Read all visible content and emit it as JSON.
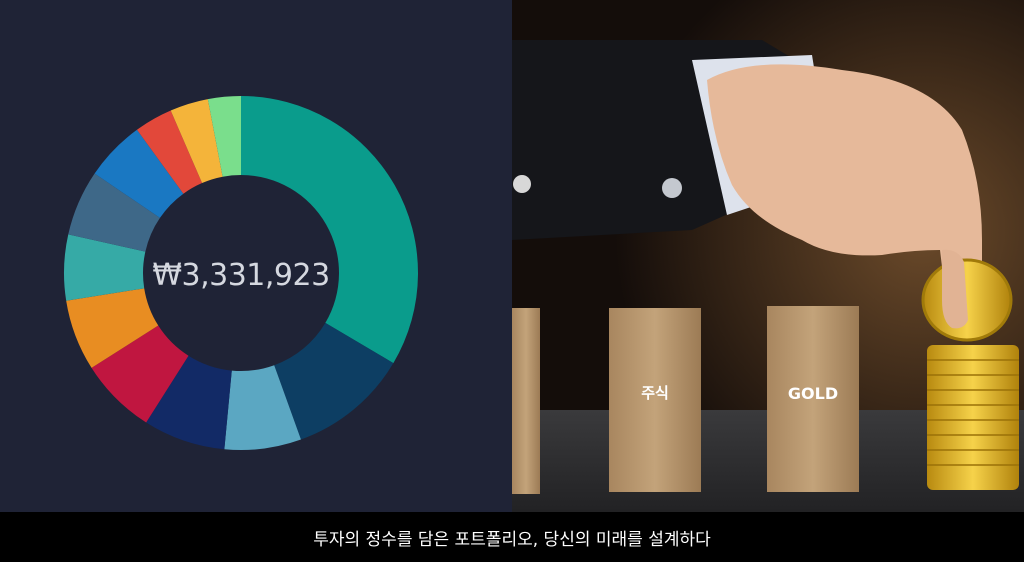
{
  "portfolio": {
    "total_label": "₩3,331,923",
    "chart_data": {
      "type": "pie",
      "title": "",
      "donut": true,
      "slices": [
        {
          "name": "slice-1",
          "value": 33.5,
          "color": "#0a9c8c"
        },
        {
          "name": "slice-2",
          "value": 11.0,
          "color": "#0d3e63"
        },
        {
          "name": "slice-3",
          "value": 7.0,
          "color": "#5ba7c2"
        },
        {
          "name": "slice-4",
          "value": 7.5,
          "color": "#122a66"
        },
        {
          "name": "slice-5",
          "value": 7.0,
          "color": "#c01640"
        },
        {
          "name": "slice-6",
          "value": 6.5,
          "color": "#e88d22"
        },
        {
          "name": "slice-7",
          "value": 6.0,
          "color": "#36aaa6"
        },
        {
          "name": "slice-8",
          "value": 6.0,
          "color": "#3e6888"
        },
        {
          "name": "slice-9",
          "value": 5.5,
          "color": "#1a78c2"
        },
        {
          "name": "slice-10",
          "value": 3.5,
          "color": "#e2483a"
        },
        {
          "name": "slice-11",
          "value": 3.5,
          "color": "#f4b43a"
        },
        {
          "name": "slice-12",
          "value": 3.0,
          "color": "#7ade8c"
        }
      ]
    }
  },
  "photo": {
    "block_labels": [
      "주식",
      "GOLD"
    ]
  },
  "caption": "투자의 정수를 담은 포트폴리오, 당신의 미래를 설계하다"
}
